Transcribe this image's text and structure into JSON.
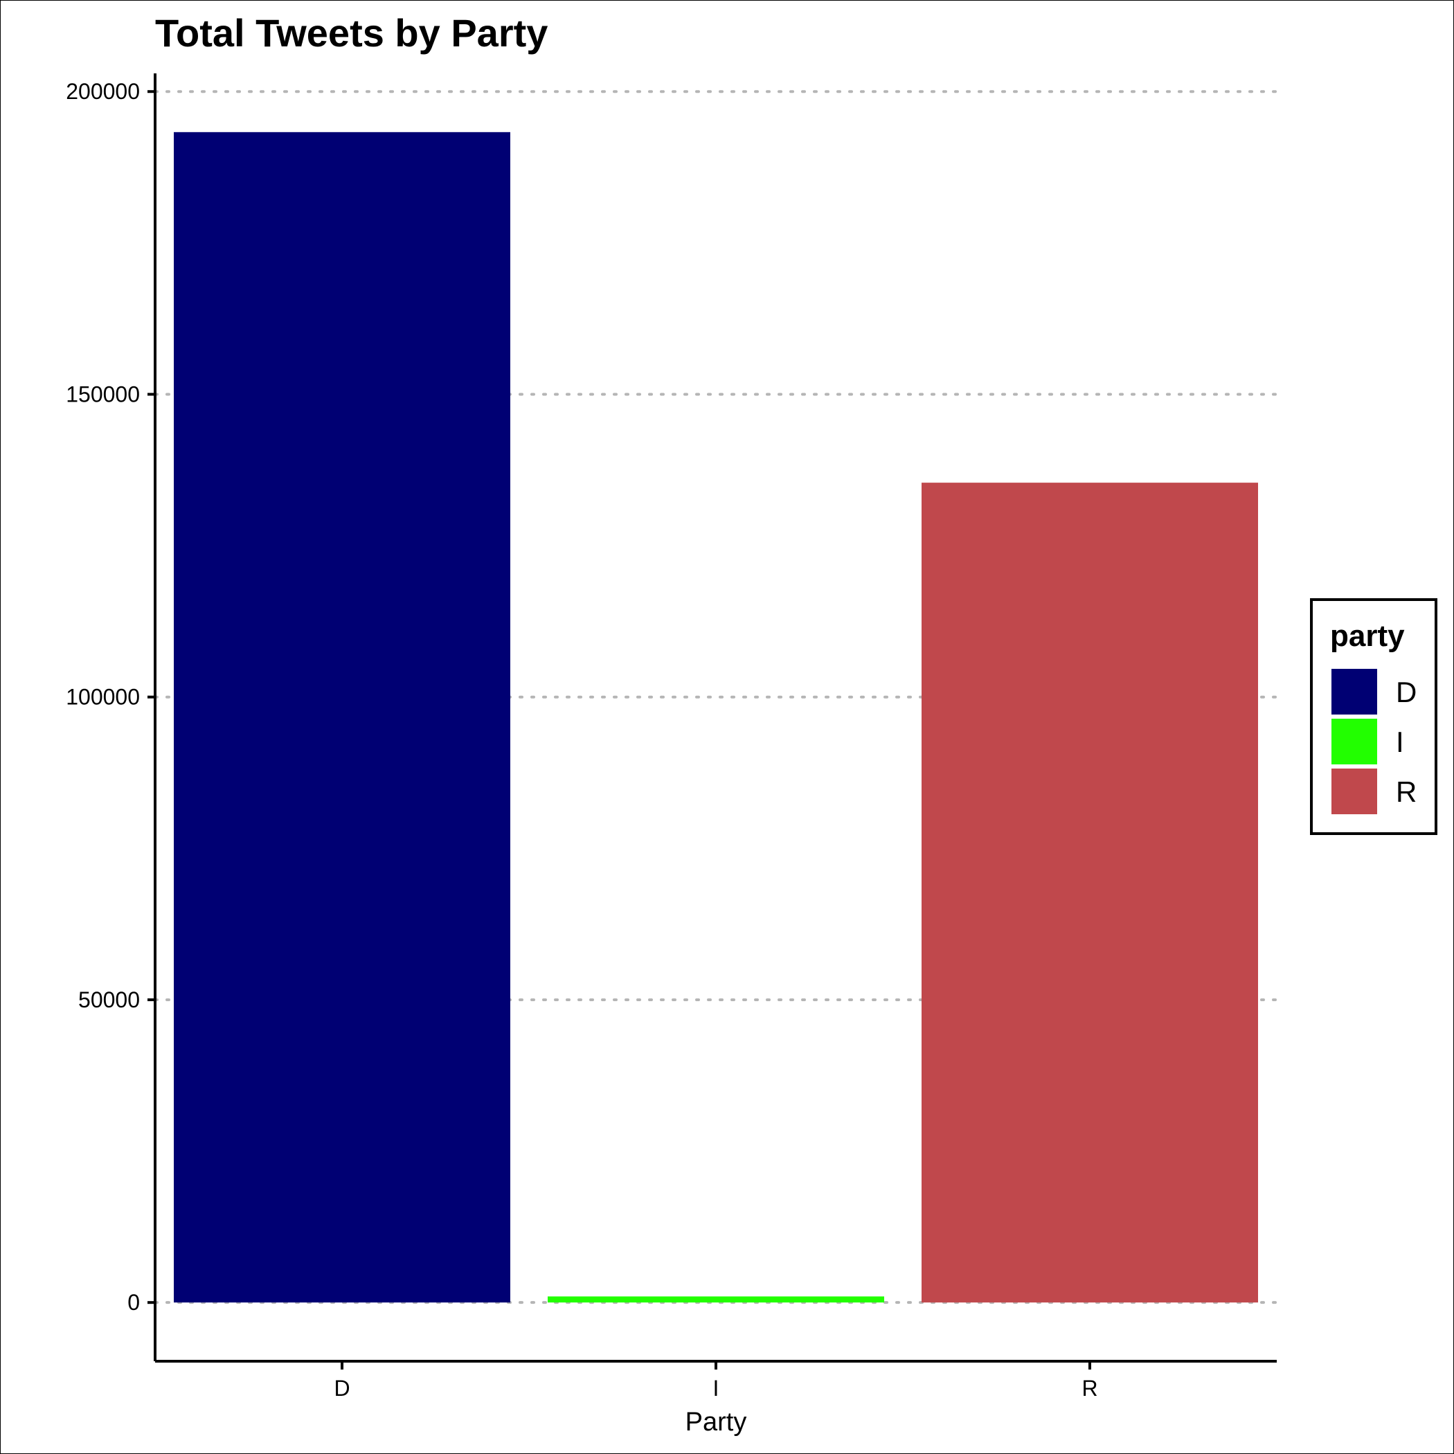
{
  "chart_data": {
    "type": "bar",
    "title": "Total Tweets by Party",
    "xlabel": "Party",
    "ylabel": "",
    "categories": [
      "D",
      "I",
      "R"
    ],
    "values": [
      193300,
      1000,
      135400
    ],
    "colors": [
      "#000073",
      "#22ff00",
      "#c0484c"
    ],
    "ylim": [
      -9700,
      203000
    ],
    "yticks": [
      0,
      50000,
      100000,
      150000,
      200000
    ],
    "ytick_labels": [
      "0",
      "50000",
      "100000",
      "150000",
      "200000"
    ],
    "grid": "horizontal-dotted",
    "legend": {
      "title": "party",
      "placement": "right",
      "entries": [
        "D",
        "I",
        "R"
      ]
    }
  }
}
